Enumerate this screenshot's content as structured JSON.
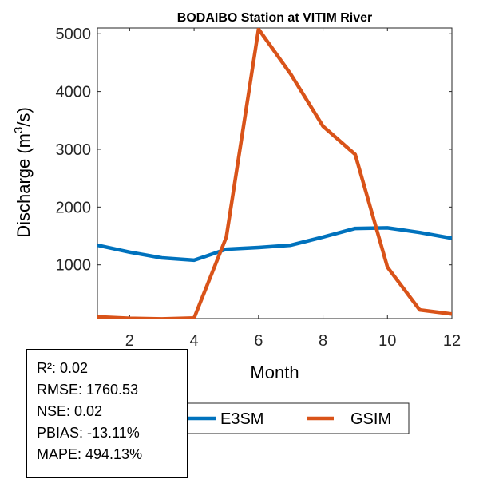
{
  "chart_data": {
    "type": "line",
    "title": "BODAIBO  Station at  VITIM  River",
    "xlabel": "Month",
    "ylabel_main": "Discharge (m",
    "ylabel_sup": "3",
    "ylabel_end": "/s)",
    "xlim": [
      1,
      12
    ],
    "ylim": [
      70,
      5100
    ],
    "xticks": [
      2,
      4,
      6,
      8,
      10,
      12
    ],
    "yticks": [
      1000,
      2000,
      3000,
      4000,
      5000
    ],
    "grid": false,
    "legend_position": "bottom-right",
    "x": [
      1,
      2,
      3,
      4,
      5,
      6,
      7,
      8,
      9,
      10,
      11,
      12
    ],
    "series": [
      {
        "name": "E3SM",
        "color": "#0072BD",
        "values": [
          1340,
          1220,
          1120,
          1080,
          1270,
          1300,
          1340,
          1480,
          1630,
          1640,
          1560,
          1460
        ]
      },
      {
        "name": "GSIM",
        "color": "#D95319",
        "values": [
          100,
          75,
          65,
          80,
          1480,
          5080,
          4300,
          3400,
          2910,
          960,
          220,
          150
        ]
      }
    ]
  },
  "stats": [
    "R²: 0.02",
    "RMSE: 1760.53",
    "NSE: 0.02",
    "PBIAS: -13.11%",
    "MAPE: 494.13%"
  ]
}
